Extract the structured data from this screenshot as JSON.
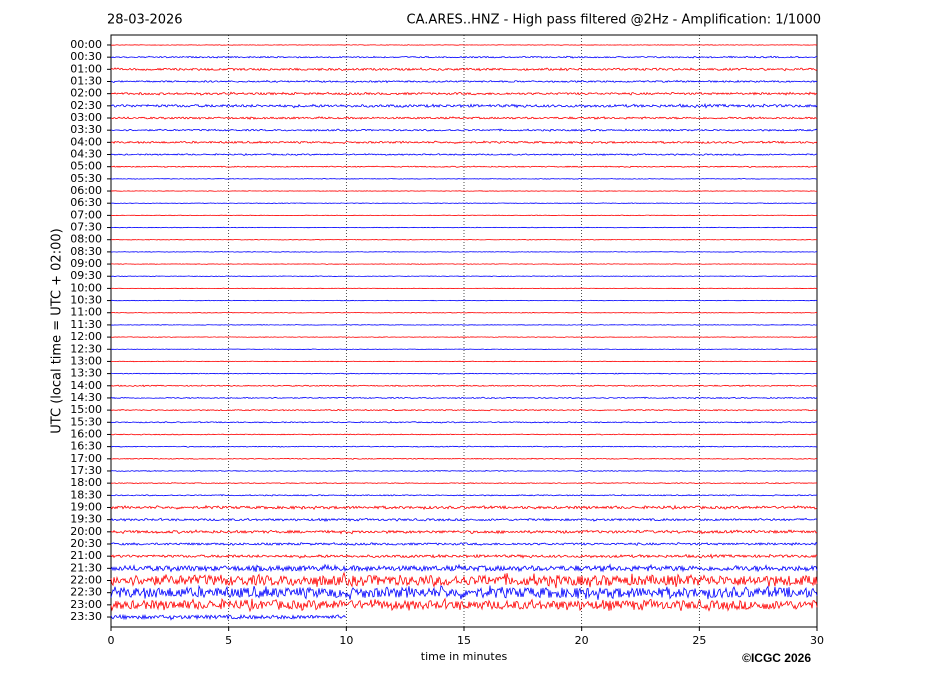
{
  "chart_data": {
    "type": "helicorder",
    "date": "28-03-2026",
    "title": "CA.ARES..HNZ - High pass filtered @2Hz - Amplification: 1/1000",
    "y_label": "UTC (local time = UTC + 02:00)",
    "x_label": "time in minutes",
    "credit": "©ICGC 2026",
    "categories": [
      "00:00",
      "00:30",
      "01:00",
      "01:30",
      "02:00",
      "02:30",
      "03:00",
      "03:30",
      "04:00",
      "04:30",
      "05:00",
      "05:30",
      "06:00",
      "06:30",
      "07:00",
      "07:30",
      "08:00",
      "08:30",
      "09:00",
      "09:30",
      "10:00",
      "10:30",
      "11:00",
      "11:30",
      "12:00",
      "12:30",
      "13:00",
      "13:30",
      "14:00",
      "14:30",
      "15:00",
      "15:30",
      "16:00",
      "16:30",
      "17:00",
      "17:30",
      "18:00",
      "18:30",
      "19:00",
      "19:30",
      "20:00",
      "20:30",
      "21:00",
      "21:30",
      "22:00",
      "22:30",
      "23:00",
      "23:30"
    ],
    "values": [
      0.02,
      0.05,
      0.08,
      0.06,
      0.08,
      0.1,
      0.07,
      0.06,
      0.07,
      0.05,
      0.04,
      0.02,
      0.02,
      0.02,
      0.02,
      0.02,
      0.02,
      0.02,
      0.02,
      0.02,
      0.02,
      0.02,
      0.02,
      0.02,
      0.02,
      0.02,
      0.02,
      0.03,
      0.04,
      0.04,
      0.04,
      0.04,
      0.03,
      0.03,
      0.03,
      0.03,
      0.03,
      0.04,
      0.1,
      0.08,
      0.1,
      0.08,
      0.1,
      0.2,
      0.4,
      0.4,
      0.35,
      0.15
    ],
    "colors": [
      "#ff0000",
      "#0000ff"
    ],
    "last_trace_end": 10,
    "xlim": [
      0,
      30
    ],
    "xticks": [
      0,
      5,
      10,
      15,
      20,
      25,
      30
    ],
    "grid": true
  }
}
